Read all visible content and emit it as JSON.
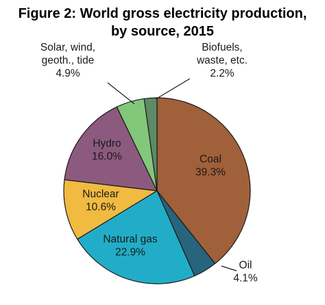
{
  "chart_data": {
    "type": "pie",
    "title_lines": [
      "Figure 2: World gross electricity production,",
      "by source, 2015"
    ],
    "slices": [
      {
        "label_lines": [
          "Coal",
          "39.3%"
        ],
        "value": 39.3,
        "color": "#a0603a",
        "label_pos": "inside"
      },
      {
        "label_lines": [
          "Oil",
          "4.1%"
        ],
        "value": 4.1,
        "color": "#27647e",
        "label_pos": "outside"
      },
      {
        "label_lines": [
          "Natural gas",
          "22.9%"
        ],
        "value": 22.9,
        "color": "#21adc8",
        "label_pos": "inside"
      },
      {
        "label_lines": [
          "Nuclear",
          "10.6%"
        ],
        "value": 10.6,
        "color": "#f1ba41",
        "label_pos": "inside"
      },
      {
        "label_lines": [
          "Hydro",
          "16.0%"
        ],
        "value": 16.0,
        "color": "#8c5a7e",
        "label_pos": "inside"
      },
      {
        "label_lines": [
          "Solar, wind,",
          "geoth., tide",
          "4.9%"
        ],
        "value": 4.9,
        "color": "#83c77b",
        "label_pos": "outside"
      },
      {
        "label_lines": [
          "Biofuels,",
          "waste, etc.",
          "2.2%"
        ],
        "value": 2.2,
        "color": "#5d8a67",
        "label_pos": "outside"
      }
    ],
    "start": "12 o'clock",
    "direction": "clockwise",
    "legend": "none"
  }
}
